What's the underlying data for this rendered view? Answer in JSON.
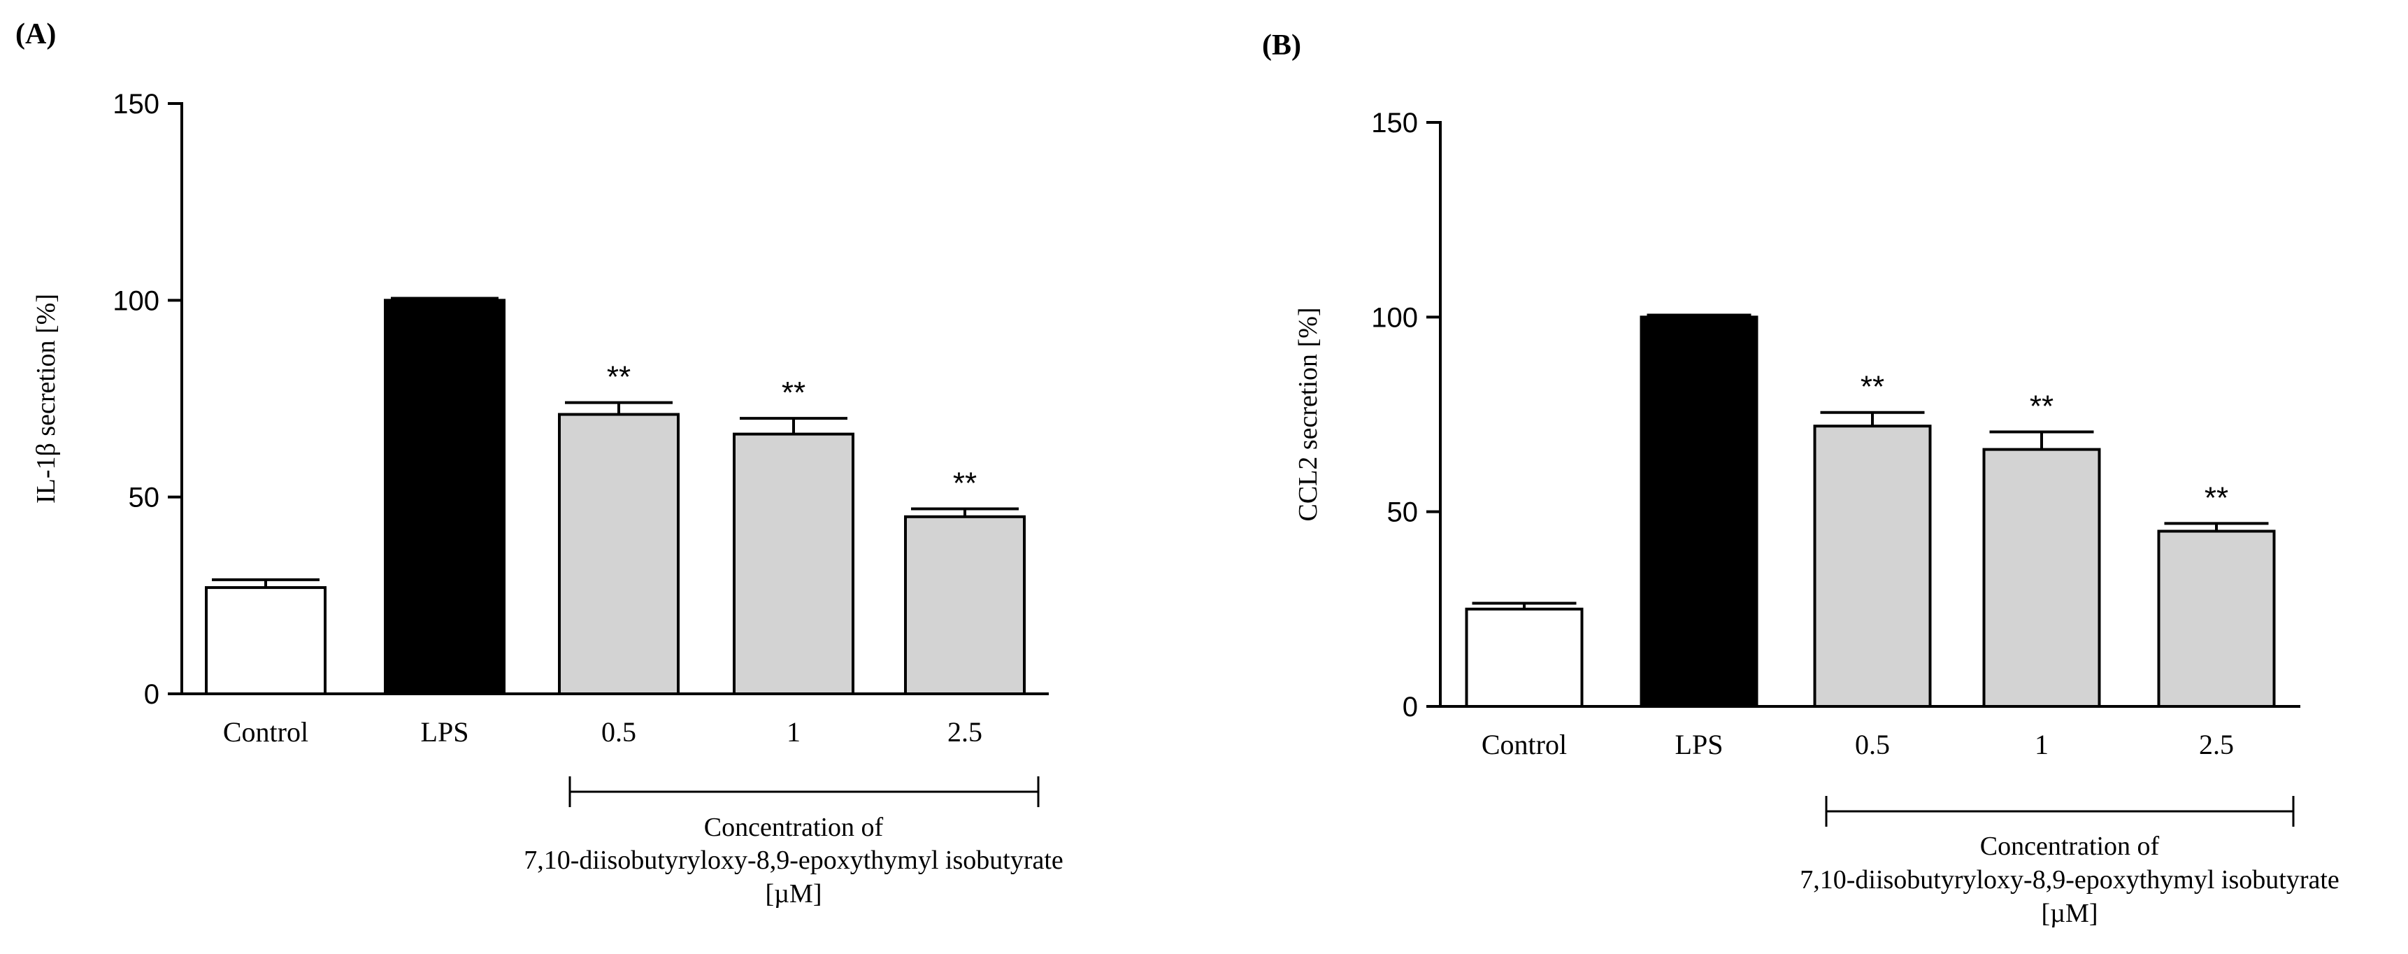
{
  "chart_data": [
    {
      "type": "bar",
      "panel_label": "(A)",
      "ylabel": "IL-1β secretion [%]",
      "ylim": [
        0,
        150
      ],
      "yticks": [
        0,
        50,
        100,
        150
      ],
      "categories": [
        "Control",
        "LPS",
        "0.5",
        "1",
        "2.5"
      ],
      "values": [
        27,
        100,
        71,
        66,
        45
      ],
      "errors": [
        2,
        0.5,
        3,
        4,
        2
      ],
      "significance": [
        "",
        "",
        "**",
        "**",
        "**"
      ],
      "bar_colors": [
        "#ffffff",
        "#000000",
        "#d3d3d3",
        "#d3d3d3",
        "#d3d3d3"
      ],
      "bracket_label_lines": [
        "Concentration of",
        "7,10-diisobutyryloxy-8,9-epoxythymyl isobutyrate",
        "[µM]"
      ]
    },
    {
      "type": "bar",
      "panel_label": "(B)",
      "ylabel": "CCL2 secretion [%]",
      "ylim": [
        0,
        150
      ],
      "yticks": [
        0,
        50,
        100,
        150
      ],
      "categories": [
        "Control",
        "LPS",
        "0.5",
        "1",
        "2.5"
      ],
      "values": [
        25,
        100,
        72,
        66,
        45
      ],
      "errors": [
        1.5,
        0.5,
        3.5,
        4.5,
        2
      ],
      "significance": [
        "",
        "",
        "**",
        "**",
        "**"
      ],
      "bar_colors": [
        "#ffffff",
        "#000000",
        "#d3d3d3",
        "#d3d3d3",
        "#d3d3d3"
      ],
      "bracket_label_lines": [
        "Concentration of",
        "7,10-diisobutyryloxy-8,9-epoxythymyl isobutyrate",
        "[µM]"
      ]
    }
  ]
}
